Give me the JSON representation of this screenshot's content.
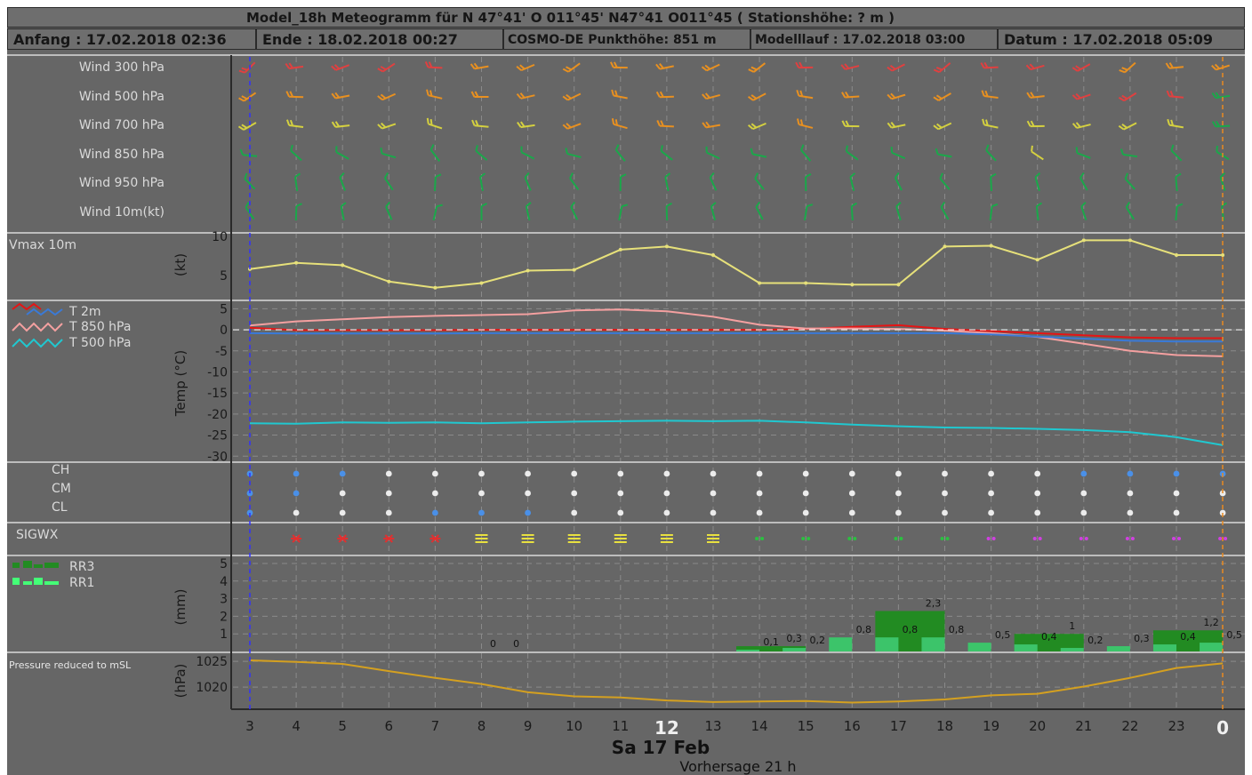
{
  "header": {
    "title": "Model_18h Meteogramm   für   N 47°41' O 011°45'  N47°41 O011°45   ( Stationshöhe: ? m )",
    "start": "Anfang : 17.02.2018 02:36",
    "end": "Ende : 18.02.2018 00:27",
    "model": "COSMO-DE  Punkthöhe: 851 m",
    "run": "Modelllauf : 17.02.2018 03:00",
    "date": "Datum : 17.02.2018 05:09"
  },
  "panel_labels": {
    "wind": [
      "Wind 300 hPa",
      "Wind 500 hPa",
      "Wind 700 hPa",
      "Wind 850 hPa",
      "Wind 950 hPa",
      "Wind 10m(kt)"
    ],
    "vmax": "Vmax 10m",
    "vmax_unit": "(kt)",
    "temp_unit": "Temp (°C)",
    "cloud_layers": [
      "CH",
      "CM",
      "CL"
    ],
    "sigwx": "SIGWX",
    "precip_unit": "(mm)",
    "pressure": "Pressure reduced to mSL",
    "pressure_unit": "(hPa)"
  },
  "footer": {
    "day": "Sa 17 Feb",
    "forecast": "Vorhersage 21 h"
  },
  "colors": {
    "background": "#666666",
    "vmax": "#e6e07a",
    "t2m": "#e61414",
    "t850": "#f4a0a0",
    "t500": "#20c8d0",
    "t_zero_line": "#3a7ad8",
    "rr3": "#228b22",
    "rr1": "#3cc46a",
    "pressure": "#d4a020",
    "now_line": "#3030ff",
    "end_line": "#e88a20",
    "wind_green": "#1aa84a",
    "wind_yellow": "#d4d040",
    "wind_orange": "#e89020",
    "wind_red": "#e04040"
  },
  "chart_data": [
    {
      "type": "other",
      "panel": "wind barbs",
      "x_hours": [
        "3",
        "4",
        "5",
        "6",
        "7",
        "8",
        "9",
        "10",
        "11",
        "12",
        "13",
        "14",
        "15",
        "16",
        "17",
        "18",
        "19",
        "20",
        "21",
        "22",
        "23",
        "0"
      ],
      "rows": [
        "Wind 300 hPa",
        "Wind 500 hPa",
        "Wind 700 hPa",
        "Wind 850 hPa",
        "Wind 950 hPa",
        "Wind 10m(kt)"
      ]
    },
    {
      "type": "line",
      "panel": "Vmax 10m",
      "x_hours": [
        "3",
        "4",
        "5",
        "6",
        "7",
        "8",
        "9",
        "10",
        "11",
        "12",
        "13",
        "14",
        "15",
        "16",
        "17",
        "18",
        "19",
        "20",
        "21",
        "22",
        "23",
        "0"
      ],
      "series": [
        {
          "name": "Vmax 10m",
          "values": [
            5.8,
            6.6,
            6.3,
            4.2,
            3.4,
            4.0,
            5.6,
            5.7,
            8.3,
            8.7,
            7.6,
            4.0,
            4.0,
            3.8,
            3.8,
            8.7,
            8.8,
            7.0,
            9.5,
            9.5,
            7.6,
            7.6
          ]
        }
      ],
      "ylabel": "(kt)",
      "yticks": [
        5,
        10
      ],
      "ylim": [
        2,
        10
      ]
    },
    {
      "type": "line",
      "panel": "Temperature",
      "x_hours": [
        "3",
        "4",
        "5",
        "6",
        "7",
        "8",
        "9",
        "10",
        "11",
        "12",
        "13",
        "14",
        "15",
        "16",
        "17",
        "18",
        "19",
        "20",
        "21",
        "22",
        "23",
        "0"
      ],
      "series": [
        {
          "name": "T 2m",
          "values": [
            0.5,
            -0.1,
            -0.1,
            -0.1,
            -0.1,
            0,
            0,
            0,
            0,
            0,
            0,
            0,
            0.2,
            0.7,
            1.1,
            0.2,
            -0.3,
            -0.8,
            -1.3,
            -1.8,
            -2.0,
            -2.0
          ]
        },
        {
          "name": "T 850 hPa",
          "values": [
            1,
            2,
            2.5,
            3,
            3.3,
            3.5,
            3.7,
            4.6,
            4.8,
            4.4,
            3.1,
            1.2,
            0.3,
            0.3,
            0.2,
            -0.2,
            -0.8,
            -1.7,
            -3.3,
            -5,
            -6,
            -6.3
          ]
        },
        {
          "name": "T 500 hPa",
          "values": [
            -22.2,
            -22.3,
            -22.0,
            -22.1,
            -22.0,
            -22.2,
            -22.0,
            -21.8,
            -21.7,
            -21.6,
            -21.7,
            -21.6,
            -22.0,
            -22.5,
            -22.9,
            -23.2,
            -23.3,
            -23.5,
            -23.8,
            -24.3,
            -25.5,
            -27.4
          ]
        }
      ],
      "ylabel": "Temp (°C)",
      "yticks": [
        5,
        0,
        -5,
        -10,
        -15,
        -20,
        -25,
        -30
      ],
      "ylim": [
        -31,
        5.5
      ]
    },
    {
      "type": "other",
      "panel": "cloud cover",
      "x_hours": [
        "3",
        "4",
        "5",
        "6",
        "7",
        "8",
        "9",
        "10",
        "11",
        "12",
        "13",
        "14",
        "15",
        "16",
        "17",
        "18",
        "19",
        "20",
        "21",
        "22",
        "23",
        "0"
      ],
      "rows": [
        "CH",
        "CM",
        "CL"
      ]
    },
    {
      "type": "other",
      "panel": "SIGWX",
      "x_hours": [
        "4",
        "5",
        "6",
        "7",
        "8",
        "9",
        "10",
        "11",
        "12",
        "13",
        "14",
        "15",
        "16",
        "17",
        "18",
        "19",
        "20",
        "21",
        "22",
        "23",
        "0"
      ]
    },
    {
      "type": "bar",
      "panel": "Precipitation",
      "ylabel": "(mm)",
      "yticks": [
        1,
        2,
        3,
        4,
        5
      ],
      "ylim": [
        0,
        5
      ],
      "series": [
        {
          "name": "RR3",
          "x": [
            9,
            12,
            15,
            18,
            21,
            24
          ],
          "values": [
            0,
            0,
            0.3,
            2.3,
            1,
            1.2
          ]
        },
        {
          "name": "RR1",
          "x": [
            14,
            15,
            16,
            17,
            18,
            19,
            20,
            21,
            22,
            23,
            24
          ],
          "values": [
            0.1,
            0.2,
            0.8,
            0.8,
            0.8,
            0.5,
            0.4,
            0.2,
            0.3,
            0.4,
            0.5
          ]
        }
      ],
      "data_labels": [
        {
          "x": 8.25,
          "text": "0"
        },
        {
          "x": 8.75,
          "text": "0"
        },
        {
          "x": 14.25,
          "text": "0,1"
        },
        {
          "x": 14.75,
          "text": "0,3"
        },
        {
          "x": 15.25,
          "text": "0,2"
        },
        {
          "x": 16.25,
          "text": "0,8"
        },
        {
          "x": 17.25,
          "text": "0,8"
        },
        {
          "x": 17.75,
          "text": "2,3"
        },
        {
          "x": 18.25,
          "text": "0,8"
        },
        {
          "x": 19.25,
          "text": "0,5"
        },
        {
          "x": 20.25,
          "text": "0,4"
        },
        {
          "x": 20.75,
          "text": "1"
        },
        {
          "x": 21.25,
          "text": "0,2"
        },
        {
          "x": 22.25,
          "text": "0,3"
        },
        {
          "x": 23.25,
          "text": "0,4"
        },
        {
          "x": 23.75,
          "text": "1,2"
        },
        {
          "x": 24.25,
          "text": "0,5"
        }
      ]
    },
    {
      "type": "line",
      "panel": "Pressure reduced to mSL",
      "x_hours": [
        "3",
        "4",
        "5",
        "6",
        "7",
        "8",
        "9",
        "10",
        "11",
        "12",
        "13",
        "14",
        "15",
        "16",
        "17",
        "18",
        "19",
        "20",
        "21",
        "22",
        "23",
        "0"
      ],
      "series": [
        {
          "name": "Pressure reduced to mSL",
          "values": [
            1025.2,
            1024.9,
            1024.5,
            1023.1,
            1021.8,
            1020.6,
            1019.0,
            1018.2,
            1018.0,
            1017.4,
            1017.1,
            1017.2,
            1017.3,
            1017.0,
            1017.2,
            1017.6,
            1018.4,
            1018.7,
            1020.1,
            1021.8,
            1023.7,
            1024.6
          ]
        }
      ],
      "ylabel": "(hPa)",
      "yticks": [
        1020,
        1025
      ],
      "ylim": [
        1015.7,
        1026.4
      ]
    }
  ]
}
